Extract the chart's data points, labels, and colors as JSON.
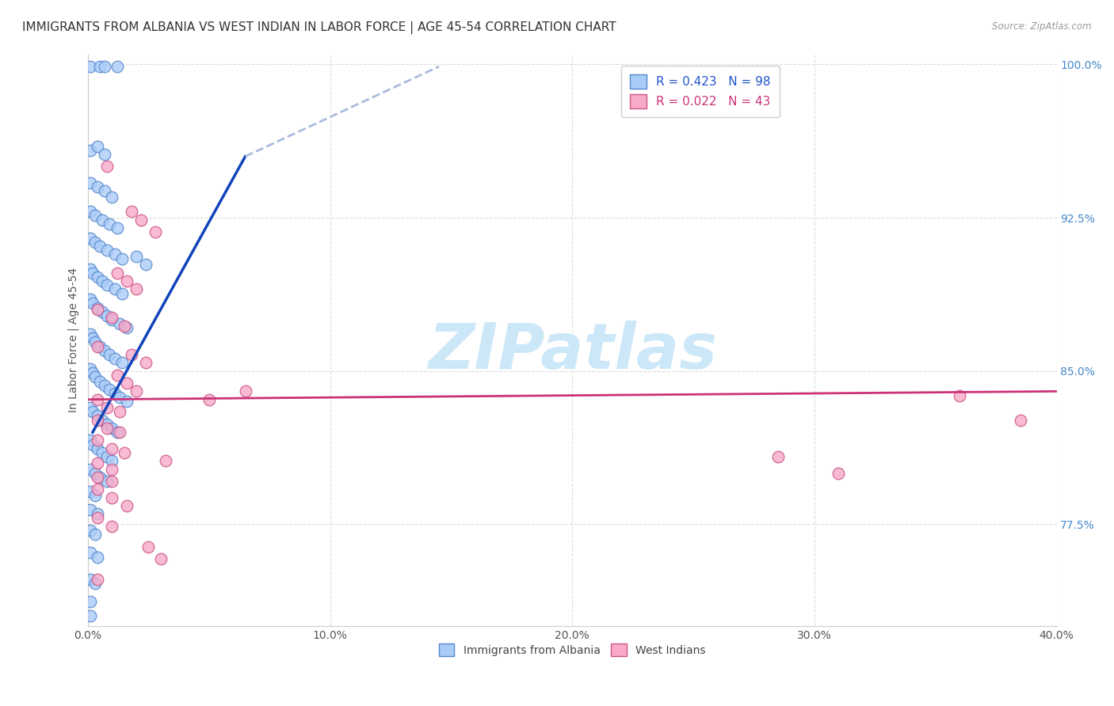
{
  "title": "IMMIGRANTS FROM ALBANIA VS WEST INDIAN IN LABOR FORCE | AGE 45-54 CORRELATION CHART",
  "source": "Source: ZipAtlas.com",
  "ylabel": "In Labor Force | Age 45-54",
  "xlim": [
    0.0,
    0.4
  ],
  "ylim": [
    0.725,
    1.005
  ],
  "xtick_labels": [
    "0.0%",
    "10.0%",
    "20.0%",
    "30.0%",
    "40.0%"
  ],
  "xtick_vals": [
    0.0,
    0.1,
    0.2,
    0.3,
    0.4
  ],
  "ytick_labels": [
    "77.5%",
    "85.0%",
    "92.5%",
    "100.0%"
  ],
  "ytick_vals": [
    0.775,
    0.85,
    0.925,
    1.0
  ],
  "albania_color": "#aaccf8",
  "albania_edge": "#5588cc",
  "west_indian_color": "#f8aac8",
  "west_indian_edge": "#cc5588",
  "albania_line_color": "#1144bb",
  "albania_dash_color": "#aabbdd",
  "west_indian_line_color": "#cc3377",
  "watermark_color": "#cce8f8",
  "tick_color_y": "#4488cc",
  "tick_color_x": "#555555",
  "background_color": "#ffffff",
  "grid_color": "#dddddd",
  "watermark": "ZIPatlas",
  "title_fontsize": 11,
  "axis_label_fontsize": 10,
  "tick_fontsize": 10,
  "legend_fontsize": 10,
  "albania_scatter": [
    [
      0.001,
      0.999
    ],
    [
      0.005,
      0.999
    ],
    [
      0.007,
      0.999
    ],
    [
      0.012,
      0.999
    ],
    [
      0.001,
      0.958
    ],
    [
      0.004,
      0.96
    ],
    [
      0.007,
      0.956
    ],
    [
      0.001,
      0.942
    ],
    [
      0.004,
      0.94
    ],
    [
      0.007,
      0.938
    ],
    [
      0.01,
      0.935
    ],
    [
      0.001,
      0.928
    ],
    [
      0.003,
      0.926
    ],
    [
      0.006,
      0.924
    ],
    [
      0.009,
      0.922
    ],
    [
      0.012,
      0.92
    ],
    [
      0.001,
      0.915
    ],
    [
      0.003,
      0.913
    ],
    [
      0.005,
      0.911
    ],
    [
      0.008,
      0.909
    ],
    [
      0.011,
      0.907
    ],
    [
      0.014,
      0.905
    ],
    [
      0.001,
      0.9
    ],
    [
      0.002,
      0.898
    ],
    [
      0.004,
      0.896
    ],
    [
      0.006,
      0.894
    ],
    [
      0.008,
      0.892
    ],
    [
      0.011,
      0.89
    ],
    [
      0.014,
      0.888
    ],
    [
      0.001,
      0.885
    ],
    [
      0.002,
      0.883
    ],
    [
      0.004,
      0.881
    ],
    [
      0.006,
      0.879
    ],
    [
      0.008,
      0.877
    ],
    [
      0.01,
      0.875
    ],
    [
      0.013,
      0.873
    ],
    [
      0.016,
      0.871
    ],
    [
      0.001,
      0.868
    ],
    [
      0.002,
      0.866
    ],
    [
      0.003,
      0.864
    ],
    [
      0.005,
      0.862
    ],
    [
      0.007,
      0.86
    ],
    [
      0.009,
      0.858
    ],
    [
      0.011,
      0.856
    ],
    [
      0.014,
      0.854
    ],
    [
      0.001,
      0.851
    ],
    [
      0.002,
      0.849
    ],
    [
      0.003,
      0.847
    ],
    [
      0.005,
      0.845
    ],
    [
      0.007,
      0.843
    ],
    [
      0.009,
      0.841
    ],
    [
      0.011,
      0.839
    ],
    [
      0.013,
      0.837
    ],
    [
      0.016,
      0.835
    ],
    [
      0.001,
      0.832
    ],
    [
      0.002,
      0.83
    ],
    [
      0.004,
      0.828
    ],
    [
      0.006,
      0.826
    ],
    [
      0.008,
      0.824
    ],
    [
      0.01,
      0.822
    ],
    [
      0.012,
      0.82
    ],
    [
      0.001,
      0.816
    ],
    [
      0.002,
      0.814
    ],
    [
      0.004,
      0.812
    ],
    [
      0.006,
      0.81
    ],
    [
      0.008,
      0.808
    ],
    [
      0.01,
      0.806
    ],
    [
      0.001,
      0.802
    ],
    [
      0.003,
      0.8
    ],
    [
      0.005,
      0.798
    ],
    [
      0.008,
      0.796
    ],
    [
      0.001,
      0.791
    ],
    [
      0.003,
      0.789
    ],
    [
      0.02,
      0.906
    ],
    [
      0.024,
      0.902
    ],
    [
      0.001,
      0.782
    ],
    [
      0.004,
      0.78
    ],
    [
      0.001,
      0.772
    ],
    [
      0.003,
      0.77
    ],
    [
      0.001,
      0.761
    ],
    [
      0.004,
      0.759
    ],
    [
      0.001,
      0.748
    ],
    [
      0.003,
      0.746
    ],
    [
      0.001,
      0.737
    ],
    [
      0.001,
      0.73
    ]
  ],
  "west_indian_scatter": [
    [
      0.008,
      0.95
    ],
    [
      0.018,
      0.928
    ],
    [
      0.022,
      0.924
    ],
    [
      0.028,
      0.918
    ],
    [
      0.012,
      0.898
    ],
    [
      0.016,
      0.894
    ],
    [
      0.02,
      0.89
    ],
    [
      0.004,
      0.88
    ],
    [
      0.01,
      0.876
    ],
    [
      0.015,
      0.872
    ],
    [
      0.004,
      0.862
    ],
    [
      0.018,
      0.858
    ],
    [
      0.024,
      0.854
    ],
    [
      0.012,
      0.848
    ],
    [
      0.016,
      0.844
    ],
    [
      0.02,
      0.84
    ],
    [
      0.004,
      0.836
    ],
    [
      0.008,
      0.832
    ],
    [
      0.013,
      0.83
    ],
    [
      0.05,
      0.836
    ],
    [
      0.065,
      0.84
    ],
    [
      0.004,
      0.826
    ],
    [
      0.008,
      0.822
    ],
    [
      0.013,
      0.82
    ],
    [
      0.004,
      0.816
    ],
    [
      0.01,
      0.812
    ],
    [
      0.015,
      0.81
    ],
    [
      0.004,
      0.805
    ],
    [
      0.01,
      0.802
    ],
    [
      0.032,
      0.806
    ],
    [
      0.004,
      0.798
    ],
    [
      0.01,
      0.796
    ],
    [
      0.004,
      0.792
    ],
    [
      0.01,
      0.788
    ],
    [
      0.016,
      0.784
    ],
    [
      0.004,
      0.778
    ],
    [
      0.01,
      0.774
    ],
    [
      0.025,
      0.764
    ],
    [
      0.03,
      0.758
    ],
    [
      0.004,
      0.748
    ],
    [
      0.285,
      0.808
    ],
    [
      0.31,
      0.8
    ],
    [
      0.36,
      0.838
    ],
    [
      0.385,
      0.826
    ]
  ],
  "albania_line": [
    [
      0.002,
      0.82
    ],
    [
      0.065,
      0.955
    ]
  ],
  "albania_dash_line": [
    [
      0.065,
      0.955
    ],
    [
      0.145,
      0.999
    ]
  ],
  "west_indian_line": [
    [
      0.0,
      0.836
    ],
    [
      0.4,
      0.84
    ]
  ]
}
